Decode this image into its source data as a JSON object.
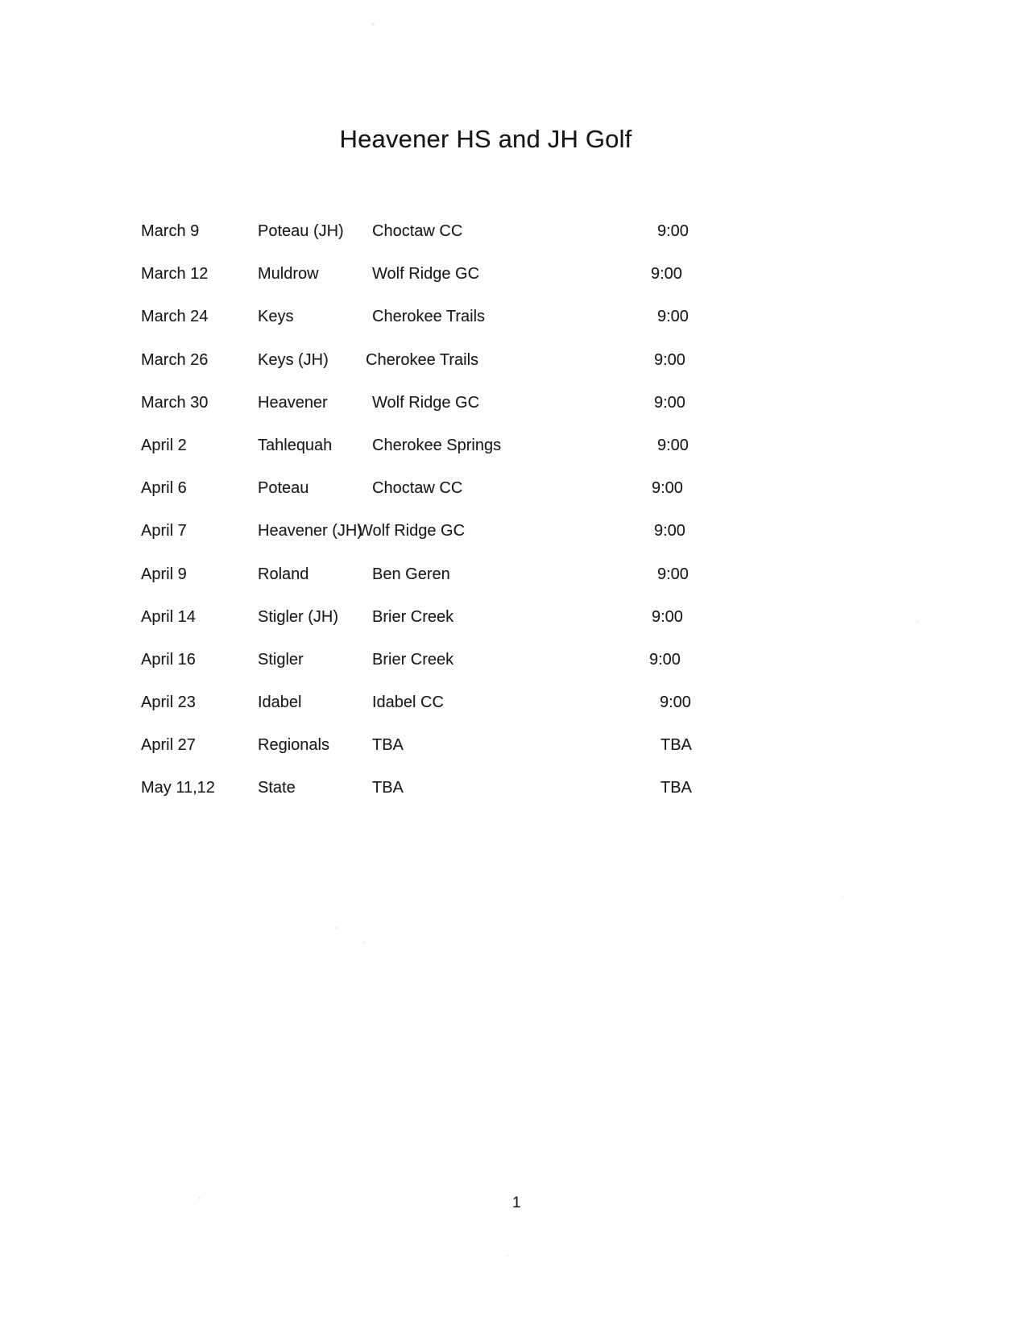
{
  "document": {
    "title": "Heavener HS and JH Golf",
    "page_number": "1"
  },
  "schedule": {
    "rows": [
      {
        "date": "March 9",
        "opponent": "Poteau (JH)",
        "course": "Choctaw CC",
        "time": "9:00"
      },
      {
        "date": "March 12",
        "opponent": "Muldrow",
        "course": "Wolf Ridge GC",
        "time": "9:00"
      },
      {
        "date": "March 24",
        "opponent": "Keys",
        "course": "Cherokee Trails",
        "time": "9:00"
      },
      {
        "date": "March 26",
        "opponent": "Keys (JH)",
        "course": "Cherokee Trails",
        "time": "9:00"
      },
      {
        "date": "March 30",
        "opponent": "Heavener",
        "course": "Wolf Ridge GC",
        "time": "9:00"
      },
      {
        "date": "April 2",
        "opponent": "Tahlequah",
        "course": "Cherokee Springs",
        "time": "9:00"
      },
      {
        "date": "April 6",
        "opponent": "Poteau",
        "course": "Choctaw CC",
        "time": "9:00"
      },
      {
        "date": "April 7",
        "opponent": "Heavener (JH)",
        "course": "Wolf Ridge GC",
        "time": "9:00"
      },
      {
        "date": "April 9",
        "opponent": "Roland",
        "course": "Ben Geren",
        "time": "9:00"
      },
      {
        "date": "April 14",
        "opponent": "Stigler (JH)",
        "course": "Brier Creek",
        "time": "9:00"
      },
      {
        "date": "April 16",
        "opponent": "Stigler",
        "course": "Brier Creek",
        "time": "9:00"
      },
      {
        "date": "April 23",
        "opponent": "Idabel",
        "course": "Idabel CC",
        "time": "9:00"
      },
      {
        "date": "April 27",
        "opponent": "Regionals",
        "course": "TBA",
        "time": "TBA"
      },
      {
        "date": "May 11,12",
        "opponent": "State",
        "course": "TBA",
        "time": "TBA"
      }
    ]
  }
}
